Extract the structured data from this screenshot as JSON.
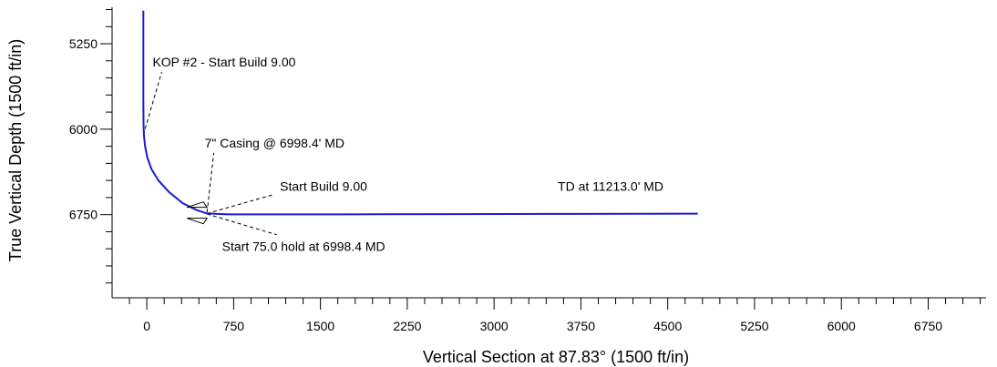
{
  "chart_data": {
    "type": "line",
    "xlabel": "Vertical Section at 87.83° (1500 ft/in)",
    "ylabel": "True Vertical Depth (1500 ft/in)",
    "xlim": [
      -300,
      7250
    ],
    "ylim": [
      4930,
      7480
    ],
    "x_ticks": [
      0,
      750,
      1500,
      2250,
      3000,
      3750,
      4500,
      5250,
      6000,
      6750
    ],
    "x_minor_step": 150,
    "y_ticks": [
      5250,
      6000,
      6750
    ],
    "y_minor_step": 150,
    "y_inverted": true,
    "grid": false,
    "series": [
      {
        "color": "#1a1ad0",
        "points": [
          [
            -30,
            4960
          ],
          [
            -30,
            5750
          ],
          [
            -29,
            5850
          ],
          [
            -28,
            5950
          ],
          [
            -25,
            6050
          ],
          [
            -15,
            6150
          ],
          [
            5,
            6250
          ],
          [
            40,
            6350
          ],
          [
            100,
            6450
          ],
          [
            190,
            6550
          ],
          [
            310,
            6650
          ],
          [
            430,
            6710
          ],
          [
            520,
            6740
          ],
          [
            700,
            6748
          ],
          [
            2000,
            6747
          ],
          [
            3500,
            6744
          ],
          [
            4760,
            6741
          ]
        ]
      }
    ],
    "annotations": [
      {
        "text": "KOP #2 - Start Build 9.00",
        "anchor": [
          -30,
          6050
        ],
        "label_pos": [
          50,
          5450
        ]
      },
      {
        "text": "7\" Casing @ 6998.4' MD",
        "anchor": [
          520,
          6730
        ],
        "label_pos": [
          500,
          6160
        ]
      },
      {
        "text": "Start Build 9.00",
        "anchor": [
          520,
          6740
        ],
        "label_pos": [
          1150,
          6540
        ]
      },
      {
        "text": "TD at 11213.0' MD",
        "anchor": [
          4760,
          6741
        ],
        "label_pos": [
          3550,
          6540
        ]
      },
      {
        "text": "Start 75.0 hold at 6998.4 MD",
        "anchor": [
          520,
          6745
        ],
        "label_pos": [
          650,
          7070
        ]
      }
    ],
    "casing_marker_at": [
      520,
      6742
    ]
  }
}
